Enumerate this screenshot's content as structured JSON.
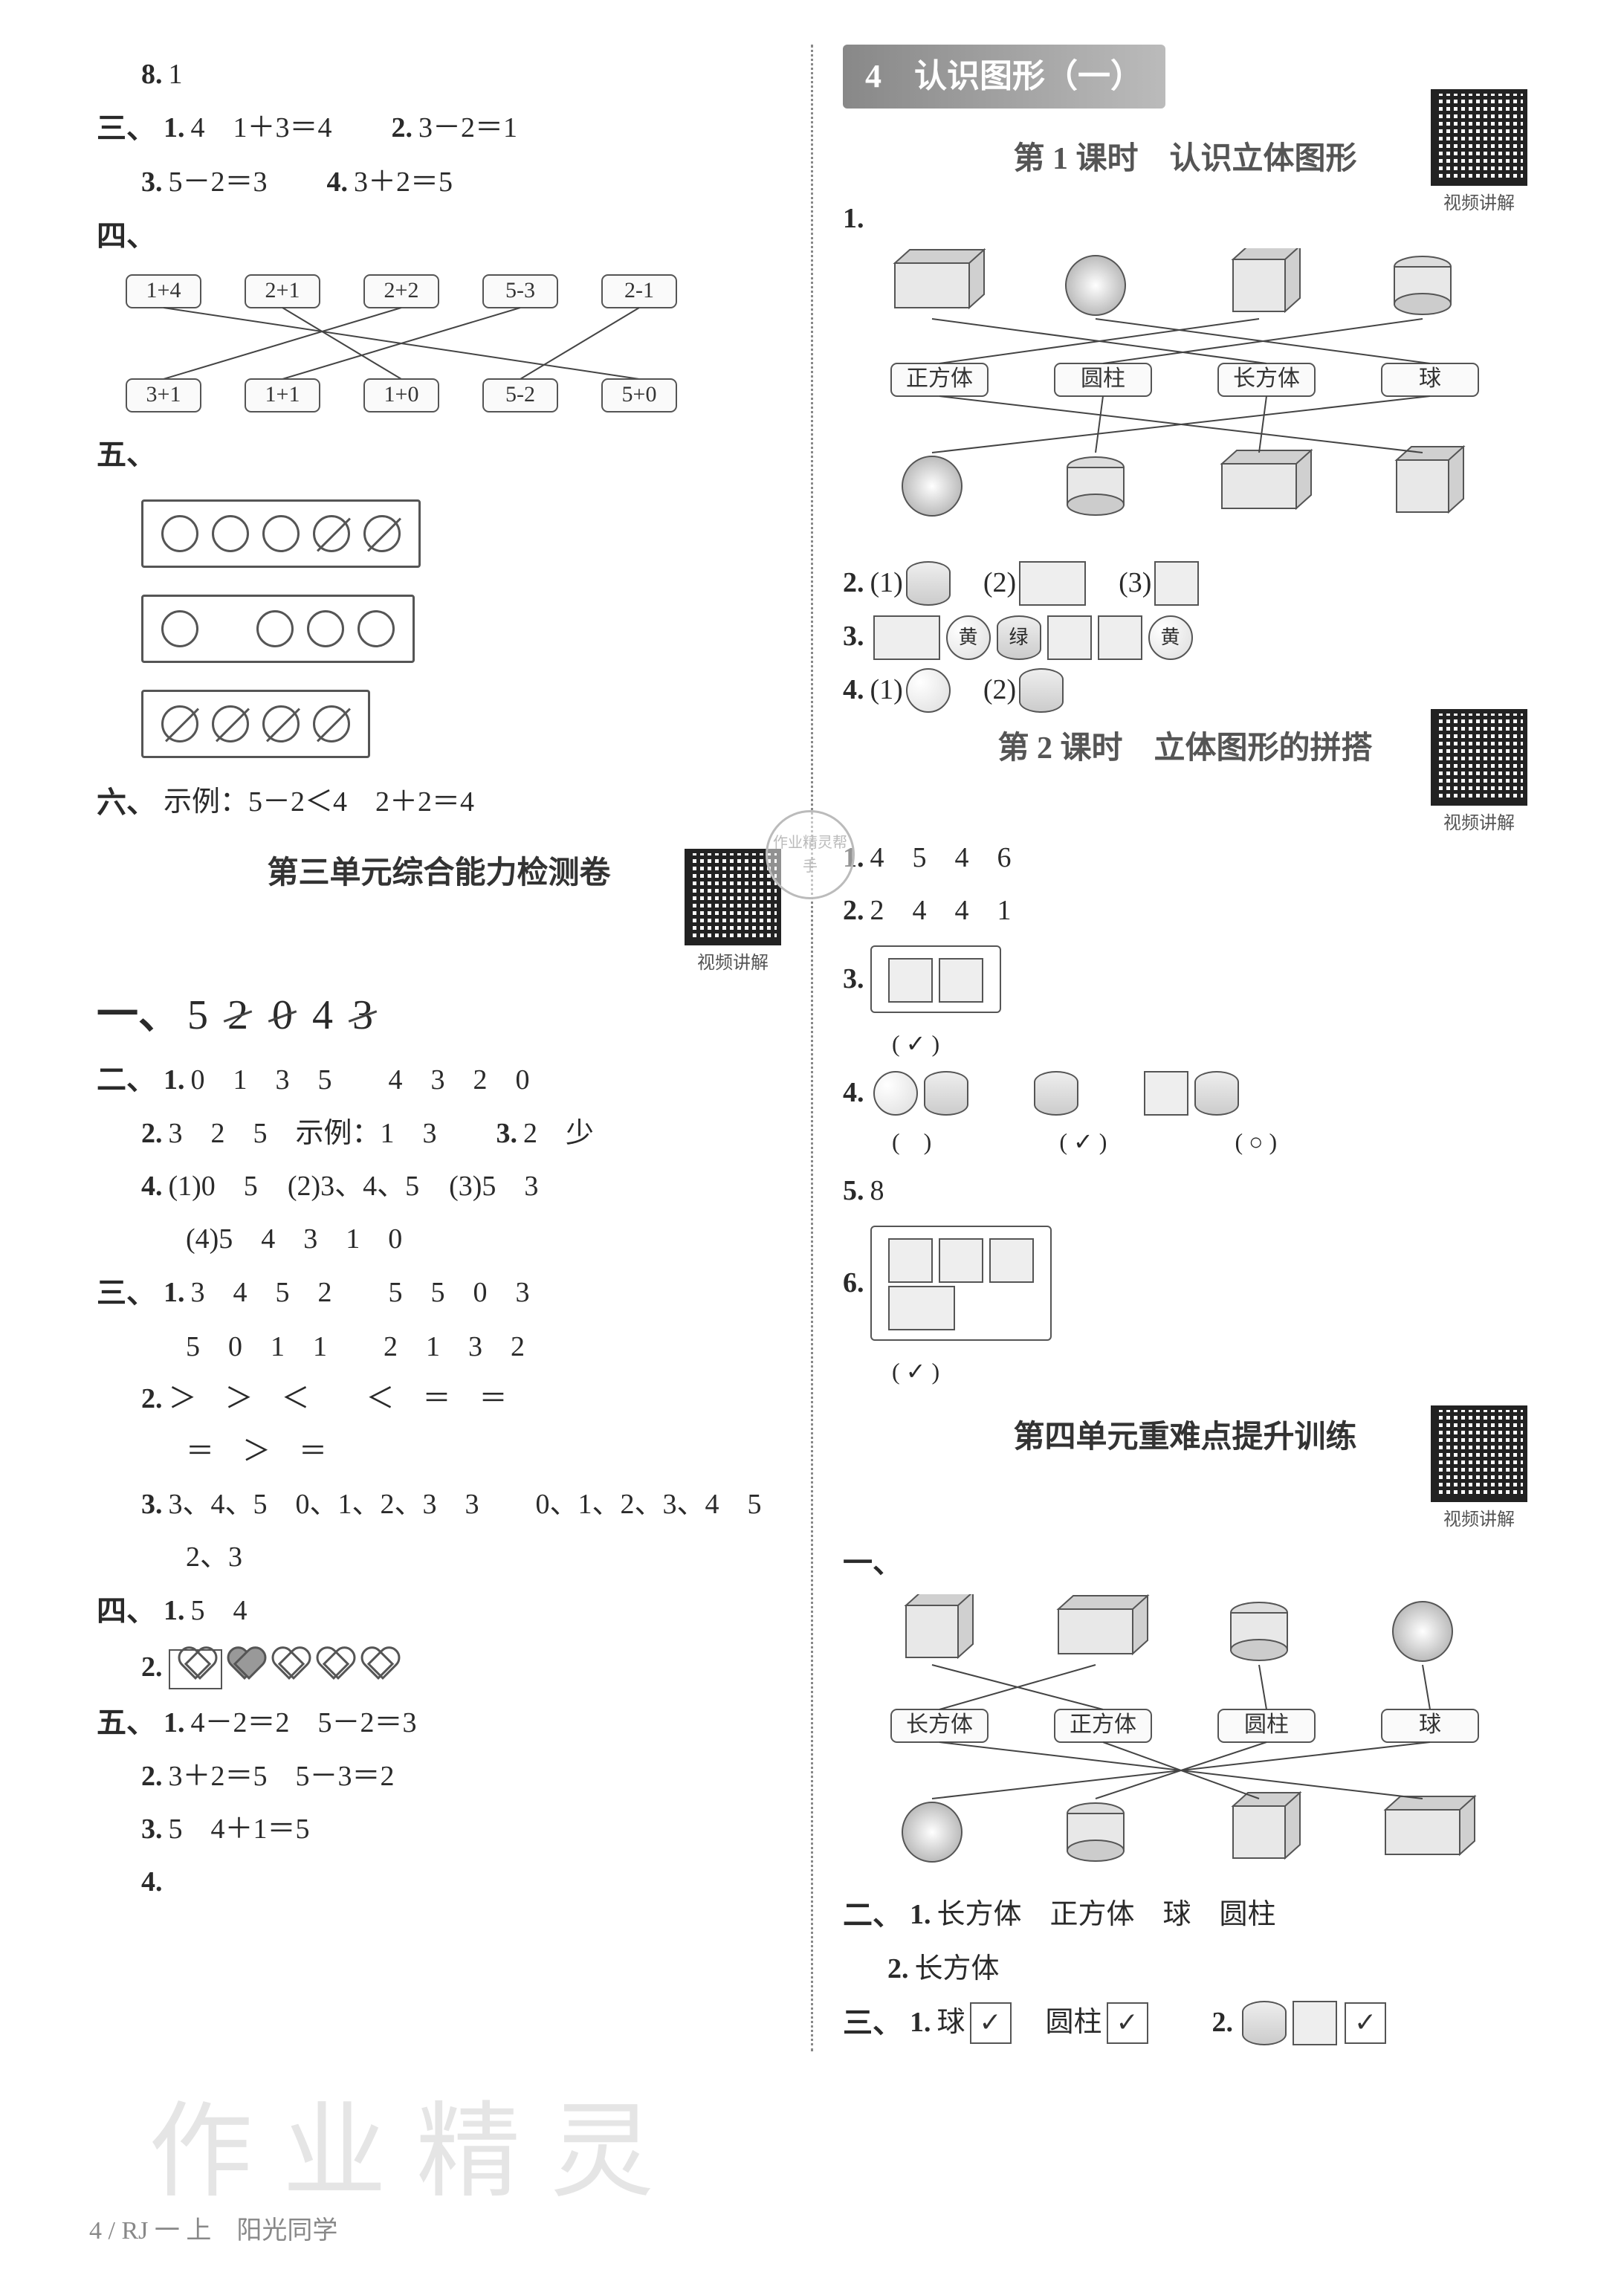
{
  "left": {
    "q8": {
      "num": "8.",
      "ans": "1"
    },
    "sec3": {
      "label": "三、",
      "items": [
        {
          "num": "1.",
          "text": "4　1＋3＝4"
        },
        {
          "num": "2.",
          "text": "3－2＝1"
        },
        {
          "num": "3.",
          "text": "5－2＝3"
        },
        {
          "num": "4.",
          "text": "3＋2＝5"
        }
      ]
    },
    "sec4": {
      "label": "四、",
      "top": [
        "1+4",
        "2+1",
        "2+2",
        "5-3",
        "2-1"
      ],
      "bottom": [
        "3+1",
        "1+1",
        "1+0",
        "5-2",
        "5+0"
      ],
      "edges": [
        [
          0,
          4
        ],
        [
          1,
          2
        ],
        [
          2,
          0
        ],
        [
          3,
          1
        ],
        [
          4,
          3
        ]
      ]
    },
    "sec5": {
      "label": "五、",
      "boxes": [
        [
          false,
          false,
          false,
          true,
          true
        ],
        [
          false,
          false,
          false,
          false
        ],
        [
          true,
          true,
          true,
          true
        ]
      ],
      "box2_gap_after": 0
    },
    "sec6": {
      "label": "六、",
      "prefix": "示例：",
      "text": "5－2＜4　2＋2＝4"
    },
    "unit3_title": "第三单元综合能力检测卷",
    "one": {
      "label": "一、",
      "nums": [
        "5",
        "2",
        "0",
        "4",
        "3"
      ],
      "strike": [
        false,
        true,
        true,
        false,
        true
      ]
    },
    "two": {
      "label": "二、",
      "r1": {
        "num": "1.",
        "text": "0　1　3　5　　4　3　2　0"
      },
      "r2": {
        "num": "2.",
        "text": "3　2　5　示例：1　3"
      },
      "r2b": {
        "num": "3.",
        "text": "2　少"
      },
      "r4": {
        "num": "4.",
        "parts": [
          "(1)0　5",
          "(2)3、4、5",
          "(3)5　3"
        ]
      },
      "r4b": "(4)5　4　3　1　0"
    },
    "three": {
      "label": "三、",
      "r1": {
        "num": "1.",
        "l1": "3　4　5　2　　5　5　0　3",
        "l2": "5　0　1　1　　2　1　3　2"
      },
      "r2": {
        "num": "2.",
        "l1": "＞　＞　＜　　＜　＝　＝",
        "l2": "＝　＞　＝"
      },
      "r3": {
        "num": "3.",
        "text": "3、4、5　0、1、2、3　3　　0、1、2、3、4　5",
        "l2": "2、3"
      }
    },
    "four": {
      "label": "四、",
      "r1": {
        "num": "1.",
        "text": "5　4"
      },
      "r2": {
        "num": "2.",
        "hearts": [
          {
            "boxed": true,
            "filled": false
          },
          {
            "boxed": false,
            "filled": true
          },
          {
            "boxed": false,
            "filled": false
          },
          {
            "boxed": false,
            "filled": false
          },
          {
            "boxed": false,
            "filled": false
          }
        ]
      }
    },
    "five": {
      "label": "五、",
      "rows": [
        {
          "num": "1.",
          "text": "4－2＝2　5－2＝3"
        },
        {
          "num": "2.",
          "text": "3＋2＝5　5－3＝2"
        },
        {
          "num": "3.",
          "text": "5　4＋1＝5"
        },
        {
          "num": "4.",
          "text": "　"
        }
      ]
    }
  },
  "right": {
    "chapter": "4　认识图形（一）",
    "lesson1": "第 1 课时　认识立体图形",
    "q1": {
      "num": "1.",
      "top_shapes": [
        "cuboid",
        "sphere",
        "cube",
        "cylinder"
      ],
      "mid_labels": [
        "正方体",
        "圆柱",
        "长方体",
        "球"
      ],
      "edges_top_mid": [
        [
          0,
          2
        ],
        [
          1,
          3
        ],
        [
          2,
          0
        ],
        [
          3,
          1
        ]
      ],
      "bottom_shapes": [
        "sphere",
        "cylinder",
        "cuboid",
        "cube"
      ],
      "edges_mid_bot": [
        [
          0,
          3
        ],
        [
          1,
          1
        ],
        [
          2,
          2
        ],
        [
          3,
          0
        ]
      ]
    },
    "q2": {
      "num": "2.",
      "parts": [
        "(1)",
        "(2)",
        "(3)"
      ]
    },
    "q3": {
      "num": "3.",
      "items": [
        {
          "shape": "cuboid",
          "label": ""
        },
        {
          "shape": "sphere",
          "label": "黄"
        },
        {
          "shape": "cylinder",
          "label": "绿"
        },
        {
          "shape": "cube",
          "label": ""
        },
        {
          "shape": "cube",
          "label": ""
        },
        {
          "shape": "sphere",
          "label": "黄"
        }
      ]
    },
    "q4": {
      "num": "4.",
      "parts": [
        "(1)",
        "(2)"
      ]
    },
    "lesson2": "第 2 课时　立体图形的拼搭",
    "l2_q1": {
      "num": "1.",
      "text": "4　5　4　6"
    },
    "l2_q2": {
      "num": "2.",
      "text": "2　4　4　1"
    },
    "l2_q3": {
      "num": "3.",
      "marks": [
        "( ✓ )",
        "(　)"
      ]
    },
    "l2_q4": {
      "num": "4.",
      "marks": [
        "(　)",
        "( ✓ )",
        "( ○ )"
      ]
    },
    "l2_q5": {
      "num": "5.",
      "text": "8"
    },
    "l2_q6": {
      "num": "6.",
      "mark": "( ✓ )"
    },
    "unit4_title": "第四单元重难点提升训练",
    "u4_one": {
      "label": "一、",
      "top_shapes": [
        "cube",
        "cuboid",
        "cylinder",
        "sphere"
      ],
      "mid_labels": [
        "长方体",
        "正方体",
        "圆柱",
        "球"
      ],
      "edges_top_mid": [
        [
          0,
          1
        ],
        [
          1,
          0
        ],
        [
          2,
          2
        ],
        [
          3,
          3
        ]
      ],
      "bottom_shapes": [
        "sphere",
        "cylinder",
        "cube",
        "cuboid"
      ],
      "edges_mid_bot": [
        [
          0,
          3
        ],
        [
          1,
          2
        ],
        [
          2,
          1
        ],
        [
          3,
          0
        ]
      ]
    },
    "u4_two": {
      "label": "二、",
      "r1": {
        "num": "1.",
        "text": "长方体　正方体　球　圆柱"
      },
      "r2": {
        "num": "2.",
        "text": "长方体"
      }
    },
    "u4_three": {
      "label": "三、",
      "r1": {
        "num": "1.",
        "items": [
          {
            "t": "球",
            "chk": "✓"
          },
          {
            "t": "圆柱",
            "chk": "✓"
          }
        ]
      },
      "r2": {
        "num": "2.",
        "chk": "✓"
      }
    }
  },
  "qr_label": "视频讲解",
  "footer": "4 / RJ 一 上　阳光同学",
  "watermark": "作业精灵",
  "stamp": "作业精灵帮手"
}
